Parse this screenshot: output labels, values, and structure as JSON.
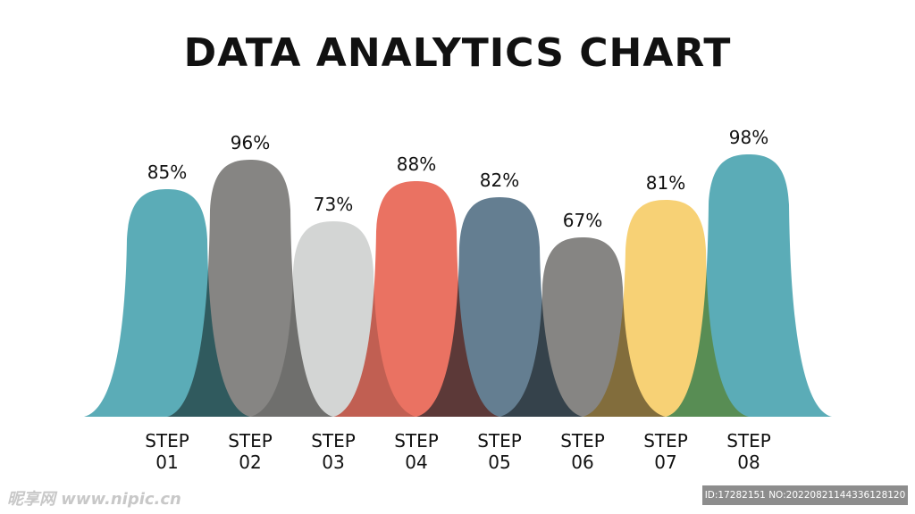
{
  "chart_data": {
    "type": "bar",
    "title": "DATA ANALYTICS CHART",
    "categories": [
      "STEP\n01",
      "STEP\n02",
      "STEP\n03",
      "STEP\n04",
      "STEP\n05",
      "STEP\n06",
      "STEP\n07",
      "STEP\n08"
    ],
    "values": [
      85,
      96,
      73,
      88,
      82,
      67,
      81,
      98
    ],
    "value_labels": [
      "85%",
      "96%",
      "73%",
      "88%",
      "82%",
      "67%",
      "81%",
      "98%"
    ],
    "colors": [
      "#4fa6b1",
      "#7d7c7a",
      "#d0d2d1",
      "#e86756",
      "#587489",
      "#7d7c7a",
      "#f6cd6b",
      "#4fa6b1"
    ],
    "ylim": [
      0,
      100
    ],
    "grid": false,
    "legend": "none"
  },
  "watermark": {
    "left_text": "昵享网 www.nipic.cn",
    "right_text": "ID:17282151 NO:20220821144336128120"
  }
}
